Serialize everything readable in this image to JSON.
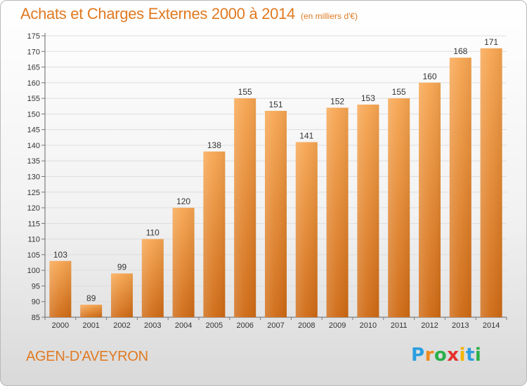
{
  "title": "Achats et Charges Externes 2000 à 2014",
  "subtitle": "(en milliers d'€)",
  "commune": "AGEN-D'AVEYRON",
  "logo": {
    "letters": [
      "P",
      "r",
      "o",
      "x",
      "i",
      "t",
      "i"
    ],
    "colors": [
      "#2b9fe0",
      "#f08a1f",
      "#2bb04a",
      "#e5312b",
      "#f5b400",
      "#2b9fe0",
      "#2bb04a"
    ]
  },
  "colors": {
    "title": "#e07a22",
    "bar_light": "#f5a04a",
    "bar_dark": "#cf6a14",
    "axis": "#555555"
  },
  "chart_data": {
    "type": "bar",
    "categories": [
      "2000",
      "2001",
      "2002",
      "2003",
      "2004",
      "2005",
      "2006",
      "2007",
      "2008",
      "2009",
      "2010",
      "2011",
      "2012",
      "2013",
      "2014"
    ],
    "values": [
      103,
      89,
      99,
      110,
      120,
      138,
      155,
      151,
      141,
      152,
      153,
      155,
      160,
      168,
      171
    ],
    "data_labels": [
      "103",
      "89",
      "99",
      "110",
      "120",
      "138",
      "155",
      "151",
      "141",
      "152",
      "153",
      "155",
      "160",
      "168",
      "171"
    ],
    "ylim": [
      85,
      175
    ],
    "yticks": [
      85,
      90,
      95,
      100,
      105,
      110,
      115,
      120,
      125,
      130,
      135,
      140,
      145,
      150,
      155,
      160,
      165,
      170,
      175
    ],
    "grid": true,
    "xlabel": "",
    "ylabel": ""
  }
}
